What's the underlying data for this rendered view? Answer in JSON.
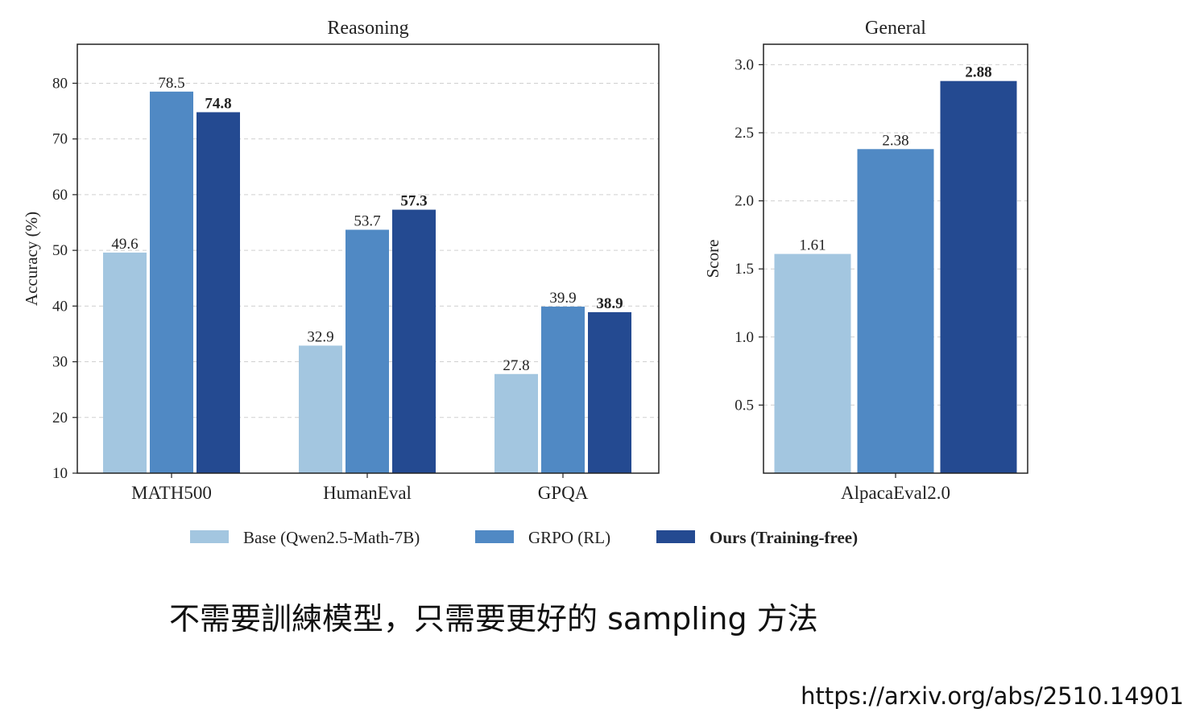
{
  "colors": {
    "base": "#a3c6e0",
    "grpo": "#5089c4",
    "ours": "#244a91"
  },
  "chart_data": [
    {
      "type": "bar",
      "title": "Reasoning",
      "ylabel": "Accuracy (%)",
      "ylim": [
        10,
        87
      ],
      "yticks": [
        10,
        20,
        30,
        40,
        50,
        60,
        70,
        80
      ],
      "grid": "horizontal dashed",
      "categories": [
        "MATH500",
        "HumanEval",
        "GPQA"
      ],
      "series": [
        {
          "name": "Base (Qwen2.5-Math-7B)",
          "values": [
            49.6,
            32.9,
            27.8
          ],
          "labels": [
            "49.6",
            "32.9",
            "27.8"
          ]
        },
        {
          "name": "GRPO (RL)",
          "values": [
            78.5,
            53.7,
            39.9
          ],
          "labels": [
            "78.5",
            "53.7",
            "39.9"
          ]
        },
        {
          "name": "Ours (Training-free)",
          "values": [
            74.8,
            57.3,
            38.9
          ],
          "labels": [
            "74.8",
            "57.3",
            "38.9"
          ]
        }
      ]
    },
    {
      "type": "bar",
      "title": "General",
      "ylabel": "Score",
      "ylim": [
        0,
        3.15
      ],
      "yticks": [
        "0.5",
        "1.0",
        "1.5",
        "2.0",
        "2.5",
        "3.0"
      ],
      "grid": "horizontal dashed",
      "categories": [
        "AlpacaEval2.0"
      ],
      "series": [
        {
          "name": "Base (Qwen2.5-Math-7B)",
          "values": [
            1.61
          ],
          "labels": [
            "1.61"
          ]
        },
        {
          "name": "GRPO (RL)",
          "values": [
            2.38
          ],
          "labels": [
            "2.38"
          ]
        },
        {
          "name": "Ours (Training-free)",
          "values": [
            2.88
          ],
          "labels": [
            "2.88"
          ]
        }
      ]
    }
  ],
  "legend": {
    "placement": "bottom-center",
    "items": [
      "Base (Qwen2.5-Math-7B)",
      "GRPO (RL)",
      "Ours (Training-free)"
    ]
  },
  "caption": "不需要訓練模型，只需要更好的 sampling 方法",
  "source_url": "https://arxiv.org/abs/2510.14901"
}
